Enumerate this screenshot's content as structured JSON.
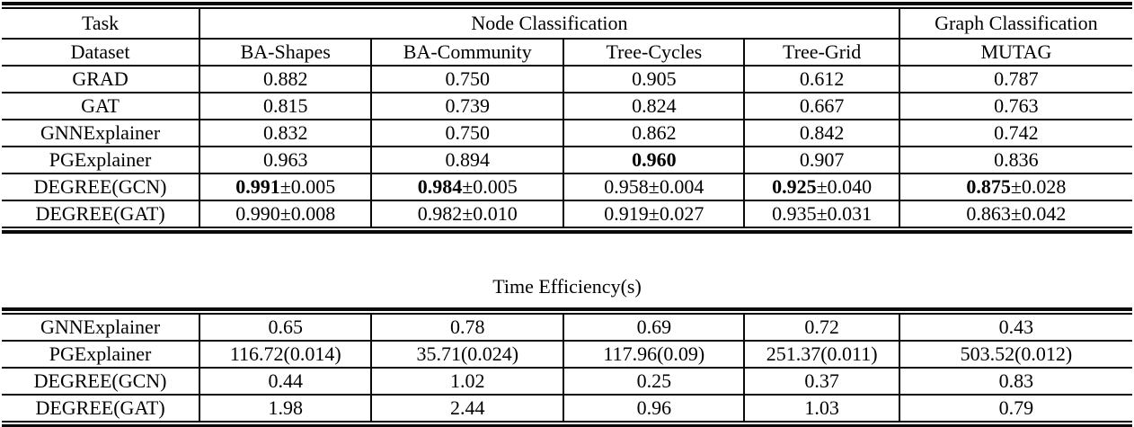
{
  "colors": {
    "text": "#000000",
    "rule": "#0a0a0a",
    "background": "#ffffff"
  },
  "results_table": {
    "task_label": "Task",
    "node_classification_label": "Node Classification",
    "graph_classification_label": "Graph Classification",
    "dataset_label": "Dataset",
    "datasets": [
      "BA-Shapes",
      "BA-Community",
      "Tree-Cycles",
      "Tree-Grid",
      "MUTAG"
    ],
    "rows": [
      {
        "method": "GRAD",
        "values": [
          {
            "bold": "",
            "normal": "0.882"
          },
          {
            "bold": "",
            "normal": "0.750"
          },
          {
            "bold": "",
            "normal": "0.905"
          },
          {
            "bold": "",
            "normal": "0.612"
          },
          {
            "bold": "",
            "normal": "0.787"
          }
        ]
      },
      {
        "method": "GAT",
        "values": [
          {
            "bold": "",
            "normal": "0.815"
          },
          {
            "bold": "",
            "normal": "0.739"
          },
          {
            "bold": "",
            "normal": "0.824"
          },
          {
            "bold": "",
            "normal": "0.667"
          },
          {
            "bold": "",
            "normal": "0.763"
          }
        ]
      },
      {
        "method": "GNNExplainer",
        "values": [
          {
            "bold": "",
            "normal": "0.832"
          },
          {
            "bold": "",
            "normal": "0.750"
          },
          {
            "bold": "",
            "normal": "0.862"
          },
          {
            "bold": "",
            "normal": "0.842"
          },
          {
            "bold": "",
            "normal": "0.742"
          }
        ]
      },
      {
        "method": "PGExplainer",
        "values": [
          {
            "bold": "",
            "normal": "0.963"
          },
          {
            "bold": "",
            "normal": "0.894"
          },
          {
            "bold": "0.960",
            "normal": ""
          },
          {
            "bold": "",
            "normal": "0.907"
          },
          {
            "bold": "",
            "normal": "0.836"
          }
        ]
      },
      {
        "method": "DEGREE(GCN)",
        "values": [
          {
            "bold": "0.991",
            "normal": "±0.005"
          },
          {
            "bold": "0.984",
            "normal": "±0.005"
          },
          {
            "bold": "",
            "normal": "0.958±0.004"
          },
          {
            "bold": "0.925",
            "normal": "±0.040"
          },
          {
            "bold": "0.875",
            "normal": "±0.028"
          }
        ]
      },
      {
        "method": "DEGREE(GAT)",
        "values": [
          {
            "bold": "",
            "normal": "0.990±0.008"
          },
          {
            "bold": "",
            "normal": "0.982±0.010"
          },
          {
            "bold": "",
            "normal": "0.919±0.027"
          },
          {
            "bold": "",
            "normal": "0.935±0.031"
          },
          {
            "bold": "",
            "normal": "0.863±0.042"
          }
        ]
      }
    ]
  },
  "time_table": {
    "title": "Time Efficiency(s)",
    "rows": [
      {
        "method": "GNNExplainer",
        "values": [
          "0.65",
          "0.78",
          "0.69",
          "0.72",
          "0.43"
        ]
      },
      {
        "method": "PGExplainer",
        "values": [
          "116.72(0.014)",
          "35.71(0.024)",
          "117.96(0.09)",
          "251.37(0.011)",
          "503.52(0.012)"
        ]
      },
      {
        "method": "DEGREE(GCN)",
        "values": [
          "0.44",
          "1.02",
          "0.25",
          "0.37",
          "0.83"
        ]
      },
      {
        "method": "DEGREE(GAT)",
        "values": [
          "1.98",
          "2.44",
          "0.96",
          "1.03",
          "0.79"
        ]
      }
    ]
  }
}
